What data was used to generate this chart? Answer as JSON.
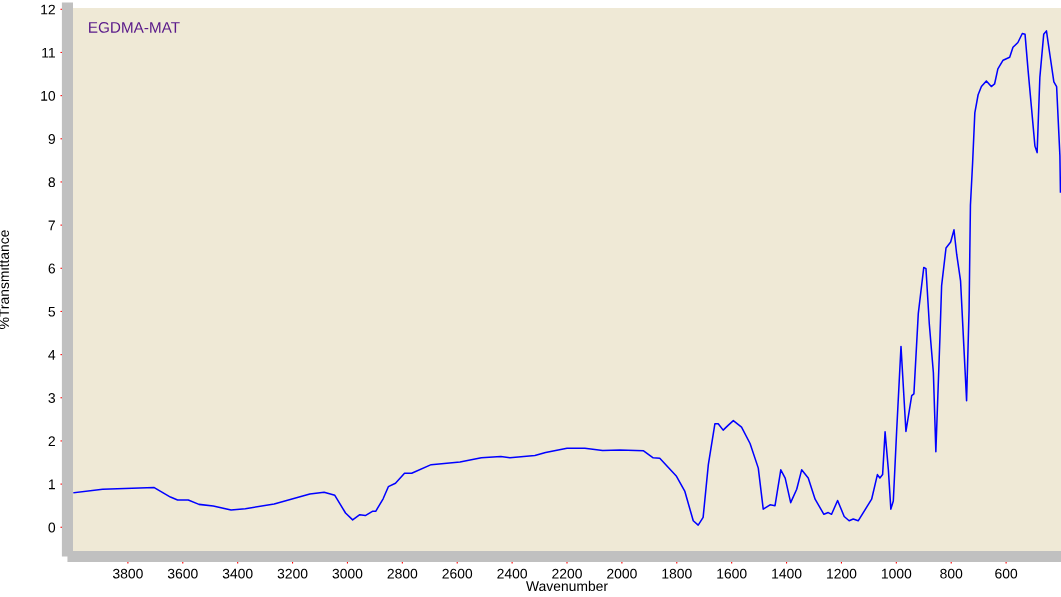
{
  "chart_data": {
    "type": "line",
    "xlabel": "Wavenumber",
    "ylabel": "%Transmittance",
    "annotations": [
      "EGDMA-MAT"
    ],
    "xlim": [
      4000,
      400
    ],
    "ylim": [
      -0.55,
      12.03
    ],
    "xticks": [
      3800,
      3600,
      3400,
      3200,
      3000,
      2800,
      2600,
      2400,
      2200,
      2000,
      1800,
      1600,
      1400,
      1200,
      1000,
      800,
      600
    ],
    "yticks": [
      0,
      1,
      2,
      3,
      4,
      5,
      6,
      7,
      8,
      9,
      10,
      11,
      12
    ],
    "grid": false,
    "legend": false,
    "marker": "none",
    "line_style": "solid",
    "x": [
      3996,
      3892,
      3704,
      3645,
      3619,
      3580,
      3541,
      3489,
      3424,
      3372,
      3267,
      3137,
      3085,
      3046,
      3007,
      2981,
      2955,
      2935,
      2909,
      2897,
      2870,
      2851,
      2825,
      2792,
      2766,
      2695,
      2590,
      2512,
      2441,
      2408,
      2317,
      2278,
      2200,
      2135,
      2070,
      2007,
      1921,
      1886,
      1862,
      1801,
      1771,
      1740,
      1722,
      1704,
      1685,
      1661,
      1649,
      1631,
      1613,
      1594,
      1564,
      1533,
      1503,
      1485,
      1460,
      1442,
      1421,
      1405,
      1385,
      1363,
      1345,
      1321,
      1296,
      1264,
      1248,
      1236,
      1214,
      1190,
      1172,
      1157,
      1139,
      1090,
      1069,
      1060,
      1050,
      1041,
      1029,
      1020,
      1011,
      999,
      983,
      965,
      944,
      936,
      920,
      900,
      892,
      880,
      865,
      856,
      841,
      835,
      819,
      802,
      790,
      780,
      766,
      754,
      744,
      735,
      730,
      722,
      714,
      702,
      690,
      672,
      654,
      642,
      630,
      611,
      587,
      575,
      557,
      541,
      531,
      520,
      508,
      495,
      487,
      477,
      463,
      453,
      441,
      426,
      416,
      404,
      402
    ],
    "series": [
      {
        "color": "#0000ff",
        "values": [
          0.8,
          0.88,
          0.92,
          0.7,
          0.63,
          0.63,
          0.53,
          0.49,
          0.4,
          0.43,
          0.54,
          0.77,
          0.81,
          0.74,
          0.33,
          0.17,
          0.29,
          0.27,
          0.37,
          0.37,
          0.66,
          0.94,
          1.02,
          1.25,
          1.25,
          1.45,
          1.51,
          1.61,
          1.64,
          1.61,
          1.66,
          1.73,
          1.83,
          1.83,
          1.78,
          1.79,
          1.77,
          1.61,
          1.6,
          1.18,
          0.84,
          0.15,
          0.05,
          0.23,
          1.45,
          2.4,
          2.4,
          2.25,
          2.36,
          2.47,
          2.32,
          1.94,
          1.37,
          0.42,
          0.52,
          0.5,
          1.33,
          1.14,
          0.57,
          0.88,
          1.33,
          1.14,
          0.65,
          0.3,
          0.34,
          0.3,
          0.62,
          0.25,
          0.15,
          0.19,
          0.15,
          0.65,
          1.22,
          1.14,
          1.22,
          2.21,
          1.33,
          0.42,
          0.61,
          2.21,
          4.19,
          2.22,
          3.05,
          3.09,
          4.95,
          6.02,
          5.99,
          4.72,
          3.58,
          1.75,
          4.42,
          5.6,
          6.47,
          6.61,
          6.89,
          6.32,
          5.71,
          4.19,
          2.93,
          5.03,
          7.46,
          8.45,
          9.6,
          10.02,
          10.21,
          10.34,
          10.21,
          10.27,
          10.62,
          10.82,
          10.89,
          11.12,
          11.23,
          11.44,
          11.42,
          10.59,
          9.75,
          8.83,
          8.68,
          10.43,
          11.42,
          11.5,
          10.97,
          10.32,
          10.21,
          8.61,
          7.77
        ]
      }
    ]
  }
}
